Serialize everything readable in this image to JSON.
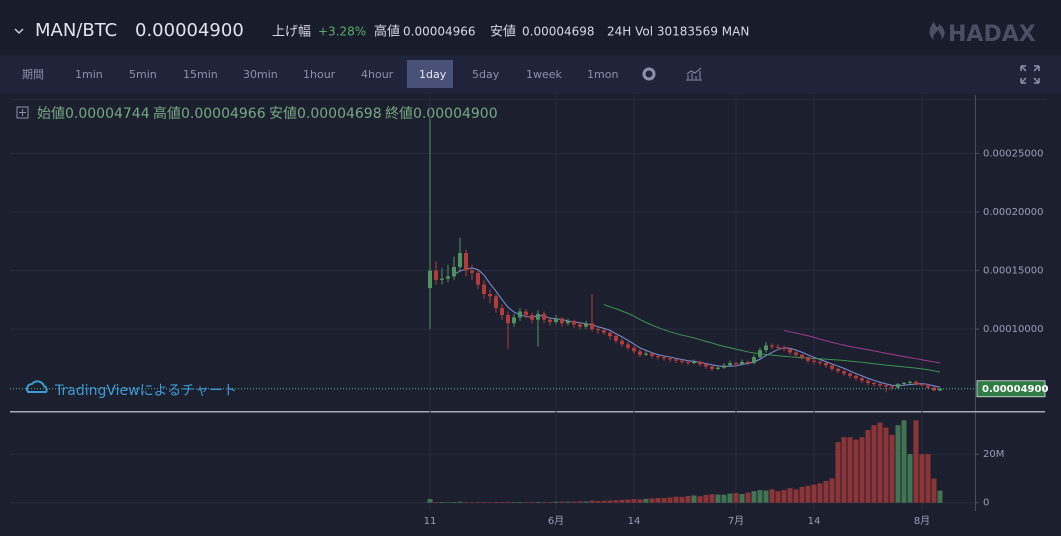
{
  "header": {
    "pair": "MAN/BTC",
    "price": "0.00004900",
    "change_label": "上げ幅",
    "change": "+3.28%",
    "high_label": "高値",
    "high": "0.00004966",
    "low_label": "安値",
    "low": "0.00004698",
    "volume": "24H Vol 30183569 MAN",
    "logo": "HADAX"
  },
  "toolbar": {
    "period_label": "期間",
    "intervals": [
      {
        "label": "1min"
      },
      {
        "label": "5min"
      },
      {
        "label": "15min"
      },
      {
        "label": "30min"
      },
      {
        "label": "1hour"
      },
      {
        "label": "4hour"
      },
      {
        "label": "1day",
        "selected": true
      },
      {
        "label": "5day"
      },
      {
        "label": "1week"
      },
      {
        "label": "1mon"
      }
    ]
  },
  "legend": {
    "open_label": "始値",
    "open": "0.00004744",
    "high_label": "高値",
    "high": "0.00004966",
    "low_label": "安値",
    "low": "0.00004698",
    "close_label": "終値",
    "close": "0.00004900"
  },
  "watermark": "TradingViewによるチャート",
  "chart_data": {
    "type": "candlestick",
    "categories": [
      "11",
      null,
      null,
      null,
      null,
      null,
      null,
      null,
      null,
      null,
      null,
      null,
      null,
      null,
      null,
      null,
      null,
      null,
      null,
      null,
      null,
      "6月",
      null,
      null,
      null,
      null,
      null,
      null,
      null,
      null,
      null,
      null,
      null,
      null,
      "14",
      null,
      null,
      null,
      null,
      null,
      null,
      null,
      null,
      null,
      null,
      null,
      null,
      null,
      null,
      null,
      null,
      "7月",
      null,
      null,
      null,
      null,
      null,
      null,
      null,
      null,
      null,
      null,
      null,
      null,
      "14",
      null,
      null,
      null,
      null,
      null,
      null,
      null,
      null,
      null,
      null,
      null,
      null,
      null,
      null,
      null,
      null,
      null,
      "8月",
      null,
      null,
      null
    ],
    "ohlc": [
      [
        0.000135,
        0.00028,
        0.0001,
        0.00015
      ],
      [
        0.00015,
        0.000158,
        0.000138,
        0.000142
      ],
      [
        0.000142,
        0.000152,
        0.000138,
        0.000143
      ],
      [
        0.000143,
        0.000155,
        0.00014,
        0.000145
      ],
      [
        0.000145,
        0.000162,
        0.000142,
        0.000153
      ],
      [
        0.000153,
        0.000178,
        0.00015,
        0.000165
      ],
      [
        0.000165,
        0.000168,
        0.000145,
        0.00015
      ],
      [
        0.00015,
        0.000155,
        0.000142,
        0.000148
      ],
      [
        0.000148,
        0.00015,
        0.000134,
        0.000138
      ],
      [
        0.000138,
        0.000142,
        0.000126,
        0.00013
      ],
      [
        0.00013,
        0.000134,
        0.000122,
        0.000128
      ],
      [
        0.000128,
        0.00013,
        0.000114,
        0.000118
      ],
      [
        0.000118,
        0.000121,
        0.000108,
        0.000112
      ],
      [
        0.000112,
        0.000115,
        8.3e-05,
        0.000105
      ],
      [
        0.000105,
        0.000113,
        0.000102,
        0.00011
      ],
      [
        0.00011,
        0.000118,
        0.000107,
        0.000115
      ],
      [
        0.000115,
        0.000117,
        0.000109,
        0.000112
      ],
      [
        0.000112,
        0.000114,
        0.000105,
        0.000108
      ],
      [
        0.000108,
        0.000116,
        8.5e-05,
        0.000113
      ],
      [
        0.000113,
        0.000115,
        0.000105,
        0.000108
      ],
      [
        0.000108,
        0.00011,
        0.000103,
        0.000106
      ],
      [
        0.000106,
        0.000112,
        0.000104,
        0.000109
      ],
      [
        0.000109,
        0.00011,
        0.000102,
        0.000105
      ],
      [
        0.000105,
        0.000109,
        0.000103,
        0.000107
      ],
      [
        0.000107,
        0.000108,
        0.000101,
        0.000104
      ],
      [
        0.000104,
        0.000106,
        0.0001,
        0.000102
      ],
      [
        0.000102,
        0.000107,
        0.0001,
        0.000105
      ],
      [
        0.000105,
        0.00013,
        9.8e-05,
        0.0001
      ],
      [
        0.0001,
        0.000102,
        9.6e-05,
        9.9e-05
      ],
      [
        9.9e-05,
        0.0001,
        9.5e-05,
        9.7e-05
      ],
      [
        9.7e-05,
        9.8e-05,
        9.1e-05,
        9.4e-05
      ],
      [
        9.4e-05,
        9.6e-05,
        8.8e-05,
        9e-05
      ],
      [
        9e-05,
        9.2e-05,
        8.5e-05,
        8.7e-05
      ],
      [
        8.7e-05,
        8.9e-05,
        8.2e-05,
        8.4e-05
      ],
      [
        8.4e-05,
        8.6e-05,
        7.9e-05,
        8.1e-05
      ],
      [
        8.1e-05,
        8.3e-05,
        7.6e-05,
        7.8e-05
      ],
      [
        7.8e-05,
        8.1e-05,
        7.7e-05,
        7.9e-05
      ],
      [
        7.9e-05,
        8e-05,
        7.5e-05,
        7.7e-05
      ],
      [
        7.7e-05,
        7.8e-05,
        7.4e-05,
        7.6e-05
      ],
      [
        7.6e-05,
        7.7e-05,
        7.3e-05,
        7.5e-05
      ],
      [
        7.5e-05,
        7.6e-05,
        7.2e-05,
        7.4e-05
      ],
      [
        7.4e-05,
        7.5e-05,
        7.1e-05,
        7.3e-05
      ],
      [
        7.3e-05,
        7.4e-05,
        7e-05,
        7.2e-05
      ],
      [
        7.2e-05,
        7.3e-05,
        6.9e-05,
        7.1e-05
      ],
      [
        7.1e-05,
        7.4e-05,
        7e-05,
        7.2e-05
      ],
      [
        7.2e-05,
        7.3e-05,
        6.8e-05,
        7e-05
      ],
      [
        7e-05,
        7.1e-05,
        6.6e-05,
        6.8e-05
      ],
      [
        6.8e-05,
        6.9e-05,
        6.4e-05,
        6.6e-05
      ],
      [
        6.6e-05,
        6.9e-05,
        6.5e-05,
        6.7e-05
      ],
      [
        6.7e-05,
        7.1e-05,
        6.6e-05,
        6.9e-05
      ],
      [
        6.9e-05,
        7.3e-05,
        6.8e-05,
        7.1e-05
      ],
      [
        7.1e-05,
        7.2e-05,
        6.8e-05,
        7e-05
      ],
      [
        7e-05,
        7.4e-05,
        6.9e-05,
        7.2e-05
      ],
      [
        7.2e-05,
        7.3e-05,
        6.9e-05,
        7.1e-05
      ],
      [
        7.1e-05,
        7.8e-05,
        7e-05,
        7.6e-05
      ],
      [
        7.6e-05,
        8.4e-05,
        7.5e-05,
        8.2e-05
      ],
      [
        8.2e-05,
        8.9e-05,
        8e-05,
        8.6e-05
      ],
      [
        8.6e-05,
        8.8e-05,
        8.3e-05,
        8.5e-05
      ],
      [
        8.5e-05,
        8.7e-05,
        8.2e-05,
        8.4e-05
      ],
      [
        8.4e-05,
        8.6e-05,
        8.1e-05,
        8.3e-05
      ],
      [
        8.3e-05,
        8.4e-05,
        7.8e-05,
        8e-05
      ],
      [
        8e-05,
        8.1e-05,
        7.6e-05,
        7.8e-05
      ],
      [
        7.8e-05,
        7.9e-05,
        7.4e-05,
        7.6e-05
      ],
      [
        7.6e-05,
        7.7e-05,
        7.1e-05,
        7.3e-05
      ],
      [
        7.3e-05,
        7.5e-05,
        7e-05,
        7.2e-05
      ],
      [
        7.2e-05,
        7.3e-05,
        6.9e-05,
        7.1e-05
      ],
      [
        7.1e-05,
        7.2e-05,
        6.7e-05,
        6.9e-05
      ],
      [
        6.9e-05,
        7e-05,
        6.4e-05,
        6.6e-05
      ],
      [
        6.6e-05,
        6.7e-05,
        6.2e-05,
        6.4e-05
      ],
      [
        6.4e-05,
        6.5e-05,
        6e-05,
        6.2e-05
      ],
      [
        6.2e-05,
        6.3e-05,
        5.8e-05,
        6e-05
      ],
      [
        6e-05,
        6.1e-05,
        5.6e-05,
        5.8e-05
      ],
      [
        5.8e-05,
        5.9e-05,
        5.4e-05,
        5.6e-05
      ],
      [
        5.6e-05,
        5.7e-05,
        5.2e-05,
        5.4e-05
      ],
      [
        5.4e-05,
        5.5e-05,
        5.1e-05,
        5.3e-05
      ],
      [
        5.3e-05,
        5.4e-05,
        5e-05,
        5.2e-05
      ],
      [
        5.2e-05,
        5.3e-05,
        4.6e-05,
        5.1e-05
      ],
      [
        5.1e-05,
        5.2e-05,
        4.8e-05,
        5e-05
      ],
      [
        5e-05,
        5.4e-05,
        4.9e-05,
        5.3e-05
      ],
      [
        5.3e-05,
        5.5e-05,
        5.2e-05,
        5.4e-05
      ],
      [
        5.4e-05,
        5.6e-05,
        5.3e-05,
        5.5e-05
      ],
      [
        5.5e-05,
        5.6e-05,
        5.2e-05,
        5.3e-05
      ],
      [
        5.3e-05,
        5.4e-05,
        5.1e-05,
        5.2e-05
      ],
      [
        5.2e-05,
        5.3e-05,
        4.9e-05,
        5e-05
      ],
      [
        5e-05,
        5.1e-05,
        4.7e-05,
        4.75e-05
      ],
      [
        4.744e-05,
        4.966e-05,
        4.698e-05,
        4.9e-05
      ]
    ],
    "up_color": "#4f9160",
    "down_color": "#b23c3c",
    "ylim": [
      3e-05,
      0.0003
    ],
    "yticks": [
      {
        "value": 0.0001,
        "label": "0.00010000"
      },
      {
        "value": 0.00015,
        "label": "0.00015000"
      },
      {
        "value": 0.0002,
        "label": "0.00020000"
      },
      {
        "value": 0.00025,
        "label": "0.00025000"
      }
    ],
    "last_price": {
      "value": 4.9e-05,
      "label": "0.00004900"
    },
    "moving_averages": [
      {
        "period": 5,
        "color": "#7f8fd6"
      },
      {
        "period": 30,
        "color": "#3f9352"
      },
      {
        "period": 60,
        "color": "#a23c94"
      }
    ],
    "grid": true,
    "volume": {
      "values": [
        1500000,
        300000,
        300000,
        250000,
        300000,
        400000,
        250000,
        200000,
        250000,
        300000,
        250000,
        300000,
        300000,
        350000,
        250000,
        300000,
        250000,
        300000,
        300000,
        250000,
        300000,
        400000,
        500000,
        450000,
        500000,
        600000,
        500000,
        900000,
        700000,
        800000,
        900000,
        1000000,
        1200000,
        1300000,
        1500000,
        1400000,
        1600000,
        1800000,
        2000000,
        1900000,
        2200000,
        2500000,
        2400000,
        2800000,
        3000000,
        2700000,
        3200000,
        3500000,
        3400000,
        3300000,
        3800000,
        4000000,
        3600000,
        4200000,
        4800000,
        5200000,
        5000000,
        5500000,
        4800000,
        5200000,
        6000000,
        5500000,
        6500000,
        7000000,
        7500000,
        8000000,
        9000000,
        10000000,
        25000000,
        27000000,
        27000000,
        26000000,
        27000000,
        30000000,
        32000000,
        33000000,
        31000000,
        28000000,
        32000000,
        34000000,
        20000000,
        34000000,
        20000000,
        20000000,
        10000000,
        5000000
      ],
      "ylim": [
        -3000000,
        37000000
      ],
      "yticks": [
        0,
        {
          "value": 20000000,
          "label": "20M"
        }
      ]
    }
  }
}
